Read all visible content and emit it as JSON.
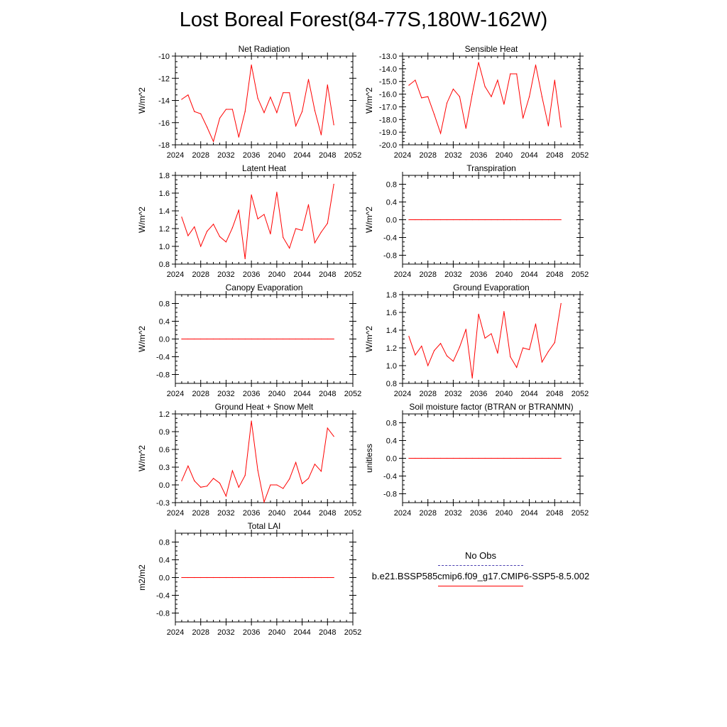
{
  "title": "Lost Boreal Forest(84-77S,180W-162W)",
  "colors": {
    "model_line": "#ff0000",
    "obs_line": "#4a3fb0"
  },
  "legend": {
    "obs_label": "No Obs",
    "case_label": "b.e21.BSSP585cmip6.f09_g17.CMIP6-SSP5-8.5.002"
  },
  "chart_data": [
    {
      "type": "line",
      "title": "Net Radiation",
      "ylabel": "W/m^2",
      "xlim": [
        2024,
        2052
      ],
      "ylim": [
        -18,
        -10
      ],
      "xticks": [
        "2024",
        "2028",
        "2032",
        "2036",
        "2040",
        "2044",
        "2048",
        "2052"
      ],
      "yticks": [
        "-18",
        "-16",
        "-14",
        "-12",
        "-10"
      ],
      "x": [
        2025,
        2026,
        2027,
        2028,
        2029,
        2030,
        2031,
        2032,
        2033,
        2034,
        2035,
        2036,
        2037,
        2038,
        2039,
        2040,
        2041,
        2042,
        2043,
        2044,
        2045,
        2046,
        2047,
        2048,
        2049
      ],
      "values": [
        -13.9,
        -13.5,
        -15.0,
        -15.2,
        -16.4,
        -17.7,
        -15.6,
        -14.8,
        -14.8,
        -17.3,
        -15.0,
        -10.8,
        -13.8,
        -15.1,
        -13.7,
        -15.1,
        -13.3,
        -13.3,
        -16.3,
        -15.0,
        -12.1,
        -14.9,
        -17.1,
        -12.6,
        -16.2
      ]
    },
    {
      "type": "line",
      "title": "Sensible Heat",
      "ylabel": "W/m^2",
      "xlim": [
        2024,
        2052
      ],
      "ylim": [
        -20,
        -13
      ],
      "xticks": [
        "2024",
        "2028",
        "2032",
        "2036",
        "2040",
        "2044",
        "2048",
        "2052"
      ],
      "yticks": [
        "-20.0",
        "-19.0",
        "-18.0",
        "-17.0",
        "-16.0",
        "-15.0",
        "-14.0",
        "-13.0"
      ],
      "x": [
        2025,
        2026,
        2027,
        2028,
        2029,
        2030,
        2031,
        2032,
        2033,
        2034,
        2035,
        2036,
        2037,
        2038,
        2039,
        2040,
        2041,
        2042,
        2043,
        2044,
        2045,
        2046,
        2047,
        2048,
        2049
      ],
      "values": [
        -15.3,
        -14.9,
        -16.3,
        -16.2,
        -17.6,
        -19.1,
        -16.7,
        -15.6,
        -16.2,
        -18.7,
        -16.0,
        -13.5,
        -15.4,
        -16.2,
        -14.9,
        -16.8,
        -14.4,
        -14.4,
        -17.9,
        -16.2,
        -13.7,
        -16.2,
        -18.5,
        -14.9,
        -18.6
      ]
    },
    {
      "type": "line",
      "title": "Latent Heat",
      "ylabel": "W/m^2",
      "xlim": [
        2024,
        2052
      ],
      "ylim": [
        0.8,
        1.8
      ],
      "xticks": [
        "2024",
        "2028",
        "2032",
        "2036",
        "2040",
        "2044",
        "2048",
        "2052"
      ],
      "yticks": [
        "0.8",
        "1.0",
        "1.2",
        "1.4",
        "1.6",
        "1.8"
      ],
      "x": [
        2025,
        2026,
        2027,
        2028,
        2029,
        2030,
        2031,
        2032,
        2033,
        2034,
        2035,
        2036,
        2037,
        2038,
        2039,
        2040,
        2041,
        2042,
        2043,
        2044,
        2045,
        2046,
        2047,
        2048,
        2049
      ],
      "values": [
        1.33,
        1.12,
        1.22,
        1.0,
        1.17,
        1.25,
        1.11,
        1.05,
        1.21,
        1.41,
        0.86,
        1.58,
        1.31,
        1.36,
        1.14,
        1.61,
        1.1,
        0.98,
        1.2,
        1.18,
        1.47,
        1.04,
        1.16,
        1.26,
        1.7
      ]
    },
    {
      "type": "line",
      "title": "Transpiration",
      "ylabel": "W/m^2",
      "xlim": [
        2024,
        2052
      ],
      "ylim": [
        -1.0,
        1.0
      ],
      "xticks": [
        "2024",
        "2028",
        "2032",
        "2036",
        "2040",
        "2044",
        "2048",
        "2052"
      ],
      "yticks": [
        "-0.8",
        "-0.4",
        "0.0",
        "0.4",
        "0.8"
      ],
      "x": [
        2025,
        2026,
        2027,
        2028,
        2029,
        2030,
        2031,
        2032,
        2033,
        2034,
        2035,
        2036,
        2037,
        2038,
        2039,
        2040,
        2041,
        2042,
        2043,
        2044,
        2045,
        2046,
        2047,
        2048,
        2049
      ],
      "values": [
        0,
        0,
        0,
        0,
        0,
        0,
        0,
        0,
        0,
        0,
        0,
        0,
        0,
        0,
        0,
        0,
        0,
        0,
        0,
        0,
        0,
        0,
        0,
        0,
        0
      ]
    },
    {
      "type": "line",
      "title": "Canopy Evaporation",
      "ylabel": "W/m^2",
      "xlim": [
        2024,
        2052
      ],
      "ylim": [
        -1.0,
        1.0
      ],
      "xticks": [
        "2024",
        "2028",
        "2032",
        "2036",
        "2040",
        "2044",
        "2048",
        "2052"
      ],
      "yticks": [
        "-0.8",
        "-0.4",
        "0.0",
        "0.4",
        "0.8"
      ],
      "x": [
        2025,
        2026,
        2027,
        2028,
        2029,
        2030,
        2031,
        2032,
        2033,
        2034,
        2035,
        2036,
        2037,
        2038,
        2039,
        2040,
        2041,
        2042,
        2043,
        2044,
        2045,
        2046,
        2047,
        2048,
        2049
      ],
      "values": [
        0,
        0,
        0,
        0,
        0,
        0,
        0,
        0,
        0,
        0,
        0,
        0,
        0,
        0,
        0,
        0,
        0,
        0,
        0,
        0,
        0,
        0,
        0,
        0,
        0
      ]
    },
    {
      "type": "line",
      "title": "Ground Evaporation",
      "ylabel": "W/m^2",
      "xlim": [
        2024,
        2052
      ],
      "ylim": [
        0.8,
        1.8
      ],
      "xticks": [
        "2024",
        "2028",
        "2032",
        "2036",
        "2040",
        "2044",
        "2048",
        "2052"
      ],
      "yticks": [
        "0.8",
        "1.0",
        "1.2",
        "1.4",
        "1.6",
        "1.8"
      ],
      "x": [
        2025,
        2026,
        2027,
        2028,
        2029,
        2030,
        2031,
        2032,
        2033,
        2034,
        2035,
        2036,
        2037,
        2038,
        2039,
        2040,
        2041,
        2042,
        2043,
        2044,
        2045,
        2046,
        2047,
        2048,
        2049
      ],
      "values": [
        1.33,
        1.12,
        1.22,
        1.0,
        1.17,
        1.25,
        1.11,
        1.05,
        1.21,
        1.41,
        0.86,
        1.58,
        1.31,
        1.36,
        1.14,
        1.61,
        1.1,
        0.98,
        1.2,
        1.18,
        1.47,
        1.04,
        1.16,
        1.26,
        1.7
      ]
    },
    {
      "type": "line",
      "title": "Ground Heat + Snow Melt",
      "ylabel": "W/m^2",
      "xlim": [
        2024,
        2052
      ],
      "ylim": [
        -0.3,
        1.2
      ],
      "xticks": [
        "2024",
        "2028",
        "2032",
        "2036",
        "2040",
        "2044",
        "2048",
        "2052"
      ],
      "yticks": [
        "-0.3",
        "0.0",
        "0.3",
        "0.6",
        "0.9",
        "1.2"
      ],
      "x": [
        2025,
        2026,
        2027,
        2028,
        2029,
        2030,
        2031,
        2032,
        2033,
        2034,
        2035,
        2036,
        2037,
        2038,
        2039,
        2040,
        2041,
        2042,
        2043,
        2044,
        2045,
        2046,
        2047,
        2048,
        2049
      ],
      "values": [
        0.07,
        0.32,
        0.07,
        -0.04,
        -0.02,
        0.11,
        0.03,
        -0.19,
        0.24,
        -0.04,
        0.16,
        1.08,
        0.25,
        -0.29,
        0.0,
        0.0,
        -0.06,
        0.1,
        0.38,
        0.02,
        0.11,
        0.35,
        0.23,
        0.96,
        0.82
      ]
    },
    {
      "type": "line",
      "title": "Soil moisture factor (BTRAN or BTRANMN)",
      "ylabel": "unitless",
      "xlim": [
        2024,
        2052
      ],
      "ylim": [
        -1.0,
        1.0
      ],
      "xticks": [
        "2024",
        "2028",
        "2032",
        "2036",
        "2040",
        "2044",
        "2048",
        "2052"
      ],
      "yticks": [
        "-0.8",
        "-0.4",
        "0.0",
        "0.4",
        "0.8"
      ],
      "x": [
        2025,
        2026,
        2027,
        2028,
        2029,
        2030,
        2031,
        2032,
        2033,
        2034,
        2035,
        2036,
        2037,
        2038,
        2039,
        2040,
        2041,
        2042,
        2043,
        2044,
        2045,
        2046,
        2047,
        2048,
        2049
      ],
      "values": [
        0,
        0,
        0,
        0,
        0,
        0,
        0,
        0,
        0,
        0,
        0,
        0,
        0,
        0,
        0,
        0,
        0,
        0,
        0,
        0,
        0,
        0,
        0,
        0,
        0
      ]
    },
    {
      "type": "line",
      "title": "Total LAI",
      "ylabel": "m2/m2",
      "xlim": [
        2024,
        2052
      ],
      "ylim": [
        -1.0,
        1.0
      ],
      "xticks": [
        "2024",
        "2028",
        "2032",
        "2036",
        "2040",
        "2044",
        "2048",
        "2052"
      ],
      "yticks": [
        "-0.8",
        "-0.4",
        "0.0",
        "0.4",
        "0.8"
      ],
      "x": [
        2025,
        2026,
        2027,
        2028,
        2029,
        2030,
        2031,
        2032,
        2033,
        2034,
        2035,
        2036,
        2037,
        2038,
        2039,
        2040,
        2041,
        2042,
        2043,
        2044,
        2045,
        2046,
        2047,
        2048,
        2049
      ],
      "values": [
        0,
        0,
        0,
        0,
        0,
        0,
        0,
        0,
        0,
        0,
        0,
        0,
        0,
        0,
        0,
        0,
        0,
        0,
        0,
        0,
        0,
        0,
        0,
        0,
        0
      ]
    }
  ]
}
